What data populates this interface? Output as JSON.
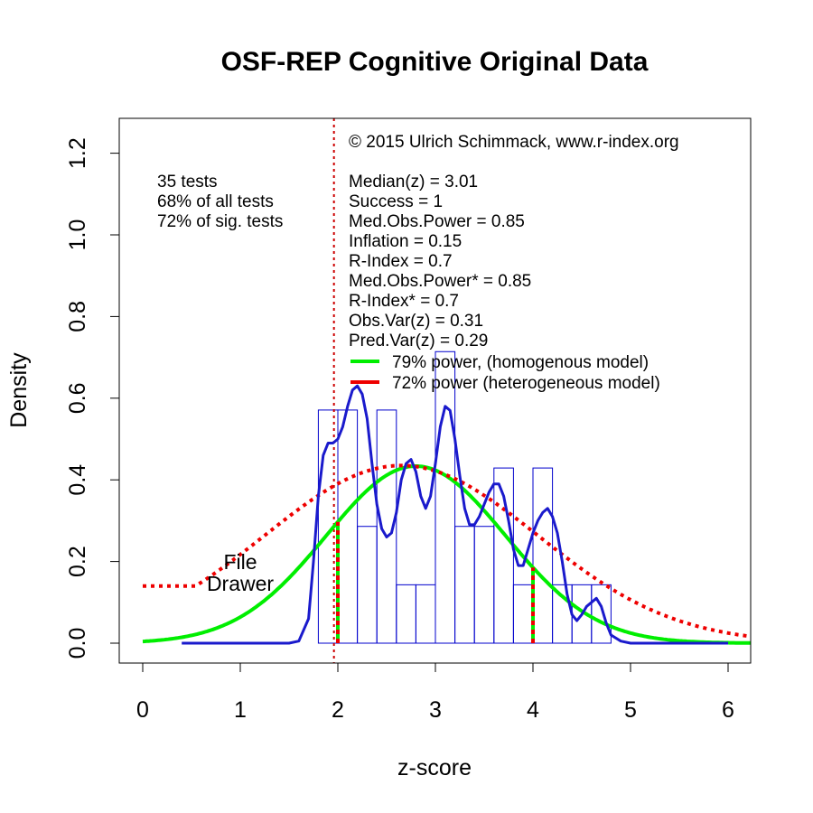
{
  "chart_data": {
    "type": "histogram+density",
    "title": "OSF-REP Cognitive Original Data",
    "xlabel": "z-score",
    "ylabel": "Density",
    "xlim": [
      -0.25,
      6.25
    ],
    "ylim": [
      -0.05,
      1.28
    ],
    "x_ticks": [
      "0",
      "1",
      "2",
      "3",
      "4",
      "5",
      "6"
    ],
    "x_tick_values": [
      0,
      1,
      2,
      3,
      4,
      5,
      6
    ],
    "y_ticks": [
      "0.0",
      "0.2",
      "0.4",
      "0.6",
      "0.8",
      "1.0",
      "1.2"
    ],
    "y_tick_values": [
      0,
      0.2,
      0.4,
      0.6,
      0.8,
      1.0,
      1.2
    ],
    "histogram": {
      "color": "#0000cc",
      "bins": [
        {
          "x0": 1.8,
          "x1": 2.0,
          "density": 0.571
        },
        {
          "x0": 2.0,
          "x1": 2.2,
          "density": 0.571
        },
        {
          "x0": 2.2,
          "x1": 2.4,
          "density": 0.286
        },
        {
          "x0": 2.4,
          "x1": 2.6,
          "density": 0.571
        },
        {
          "x0": 2.6,
          "x1": 2.8,
          "density": 0.143
        },
        {
          "x0": 2.8,
          "x1": 3.0,
          "density": 0.143
        },
        {
          "x0": 3.0,
          "x1": 3.2,
          "density": 0.714
        },
        {
          "x0": 3.2,
          "x1": 3.4,
          "density": 0.286
        },
        {
          "x0": 3.4,
          "x1": 3.6,
          "density": 0.286
        },
        {
          "x0": 3.6,
          "x1": 3.8,
          "density": 0.429
        },
        {
          "x0": 3.8,
          "x1": 4.0,
          "density": 0.143
        },
        {
          "x0": 4.0,
          "x1": 4.2,
          "density": 0.429
        },
        {
          "x0": 4.2,
          "x1": 4.4,
          "density": 0.143
        },
        {
          "x0": 4.4,
          "x1": 4.6,
          "density": 0.143
        },
        {
          "x0": 4.6,
          "x1": 4.8,
          "density": 0.143
        }
      ]
    },
    "kernel_density": {
      "color": "#1a1acc",
      "points": [
        [
          0.4,
          0
        ],
        [
          1.5,
          0
        ],
        [
          1.6,
          0.005
        ],
        [
          1.7,
          0.06
        ],
        [
          1.75,
          0.2
        ],
        [
          1.8,
          0.36
        ],
        [
          1.85,
          0.46
        ],
        [
          1.9,
          0.49
        ],
        [
          1.95,
          0.49
        ],
        [
          2.0,
          0.5
        ],
        [
          2.05,
          0.53
        ],
        [
          2.1,
          0.58
        ],
        [
          2.15,
          0.62
        ],
        [
          2.2,
          0.63
        ],
        [
          2.25,
          0.61
        ],
        [
          2.3,
          0.55
        ],
        [
          2.35,
          0.44
        ],
        [
          2.4,
          0.34
        ],
        [
          2.45,
          0.28
        ],
        [
          2.5,
          0.26
        ],
        [
          2.55,
          0.27
        ],
        [
          2.6,
          0.32
        ],
        [
          2.65,
          0.4
        ],
        [
          2.7,
          0.44
        ],
        [
          2.75,
          0.45
        ],
        [
          2.8,
          0.42
        ],
        [
          2.85,
          0.36
        ],
        [
          2.9,
          0.33
        ],
        [
          2.95,
          0.36
        ],
        [
          3.0,
          0.44
        ],
        [
          3.05,
          0.53
        ],
        [
          3.1,
          0.58
        ],
        [
          3.15,
          0.57
        ],
        [
          3.2,
          0.5
        ],
        [
          3.25,
          0.41
        ],
        [
          3.3,
          0.33
        ],
        [
          3.35,
          0.29
        ],
        [
          3.4,
          0.29
        ],
        [
          3.45,
          0.31
        ],
        [
          3.5,
          0.34
        ],
        [
          3.55,
          0.37
        ],
        [
          3.6,
          0.39
        ],
        [
          3.65,
          0.39
        ],
        [
          3.7,
          0.36
        ],
        [
          3.75,
          0.3
        ],
        [
          3.8,
          0.23
        ],
        [
          3.85,
          0.19
        ],
        [
          3.9,
          0.19
        ],
        [
          3.95,
          0.23
        ],
        [
          4.0,
          0.27
        ],
        [
          4.05,
          0.3
        ],
        [
          4.1,
          0.32
        ],
        [
          4.15,
          0.33
        ],
        [
          4.2,
          0.31
        ],
        [
          4.25,
          0.27
        ],
        [
          4.3,
          0.2
        ],
        [
          4.35,
          0.12
        ],
        [
          4.4,
          0.07
        ],
        [
          4.45,
          0.055
        ],
        [
          4.5,
          0.07
        ],
        [
          4.55,
          0.09
        ],
        [
          4.6,
          0.1
        ],
        [
          4.65,
          0.11
        ],
        [
          4.7,
          0.09
        ],
        [
          4.75,
          0.05
        ],
        [
          4.8,
          0.02
        ],
        [
          4.9,
          0.005
        ],
        [
          5.0,
          0
        ],
        [
          6.0,
          0
        ]
      ]
    },
    "homogeneous_model": {
      "color": "#00ee00",
      "mean": 2.8,
      "sd": 0.92,
      "scale": 1.0,
      "x_range": [
        0,
        6.25
      ],
      "cut_lines": [
        2.0,
        4.0
      ]
    },
    "heterogeneous_model": {
      "color": "#ee0000",
      "mean": 2.65,
      "sd": 1.4,
      "peak": 0.435,
      "floor": 0.14,
      "floor_below": 0.84,
      "x_range": [
        0,
        6.25
      ],
      "cut_lines": [
        2.0,
        4.0
      ]
    },
    "significance_line": {
      "x": 1.96,
      "color": "#cc0000"
    },
    "left_notes": [
      "35 tests",
      "68% of all tests",
      "72% of sig. tests"
    ],
    "copyright": "© 2015 Ulrich Schimmack, www.r-index.org",
    "stats": [
      "Median(z) = 3.01",
      "Success = 1",
      "Med.Obs.Power = 0.85",
      "Inflation = 0.15",
      "R-Index = 0.7",
      "Med.Obs.Power* = 0.85",
      "R-Index* = 0.7",
      "Obs.Var(z) = 0.31",
      "Pred.Var(z) = 0.29"
    ],
    "legend": [
      {
        "label": "79% power, (homogenous model)",
        "color": "#00ee00"
      },
      {
        "label": "72% power (heterogeneous model)",
        "color": "#ee0000"
      }
    ],
    "file_drawer": {
      "line1": "File",
      "line2": "Drawer"
    }
  }
}
